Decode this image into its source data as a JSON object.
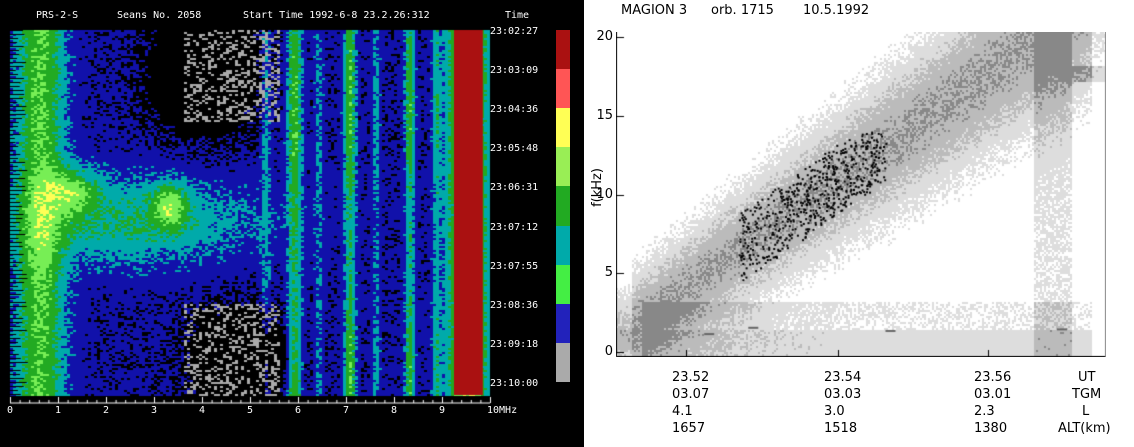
{
  "left_chart": {
    "header": {
      "instrument": "PRS-2-S",
      "session": "Seans No. 2058",
      "start_time": "Start Time 1992-6-8 23.2.26:312",
      "time_col": "Time"
    },
    "time_labels": [
      "23:02:27",
      "23:03:09",
      "23:04:36",
      "23:05:48",
      "23:06:31",
      "23:07:12",
      "23:07:55",
      "23:08:36",
      "23:09:18",
      "23:10:00"
    ],
    "freq_labels": [
      "0",
      "1",
      "2",
      "3",
      "4",
      "5",
      "6",
      "7",
      "8",
      "9",
      "10MHz"
    ],
    "colorbar": [
      "#aa1111",
      "#ff5555",
      "#ffff55",
      "#99ee55",
      "#22aa22",
      "#00aaaa",
      "#44ee44",
      "#2222bb",
      "#aaaaaa"
    ],
    "palette": {
      "dark_red": "#aa1111",
      "red": "#ff5555",
      "yellow": "#ffff55",
      "light_green": "#77ee55",
      "green": "#22aa22",
      "teal": "#00aaaa",
      "blue": "#1111aa",
      "grey": "#aaaaaa",
      "black": "#000000"
    }
  },
  "right_chart": {
    "title": {
      "satellite": "MAGION 3",
      "orbit": "orb. 1715",
      "date": "10.5.1992"
    },
    "ylabel": "f(kHz)",
    "yticks": [
      "0",
      "5",
      "10",
      "15",
      "20"
    ],
    "ylim": [
      0,
      20
    ],
    "columns": [
      {
        "ut": "23.52",
        "tgm": "03.07",
        "l": "4.1",
        "alt": "1657"
      },
      {
        "ut": "23.54",
        "tgm": "03.03",
        "l": "3.0",
        "alt": "1518"
      },
      {
        "ut": "23.56",
        "tgm": "03.01",
        "l": "2.3",
        "alt": "1380"
      }
    ],
    "row_labels": {
      "ut": "UT",
      "tgm": "TGM",
      "l": "L",
      "alt": "ALT(km)"
    }
  },
  "chart_data": [
    {
      "type": "heatmap",
      "title": "PRS-2-S Seans No. 2058 Start Time 1992-6-8 23.2.26:312",
      "xlabel": "",
      "ylabel": "Time",
      "x_ticks": [
        "0",
        "1",
        "2",
        "3",
        "4",
        "5",
        "6",
        "7",
        "8",
        "9",
        "10MHz"
      ],
      "y_ticks": [
        "23:02:27",
        "23:03:09",
        "23:04:36",
        "23:05:48",
        "23:06:31",
        "23:07:12",
        "23:07:55",
        "23:08:36",
        "23:09:18",
        "23:10:00"
      ],
      "xlim": [
        0,
        10
      ],
      "color_levels": 9
    },
    {
      "type": "heatmap",
      "title": "MAGION 3 orb. 1715 10.5.1992",
      "ylabel": "f(kHz)",
      "ylim": [
        0,
        20
      ],
      "y_ticks": [
        0,
        5,
        10,
        15,
        20
      ],
      "x_ticks": [
        {
          "ut": "23.52",
          "tgm": "03.07",
          "l": "4.1",
          "alt": "1657"
        },
        {
          "ut": "23.54",
          "tgm": "03.03",
          "l": "3.0",
          "alt": "1518"
        },
        {
          "ut": "23.56",
          "tgm": "03.01",
          "l": "2.3",
          "alt": "1380"
        }
      ],
      "grey_levels": 4
    }
  ]
}
